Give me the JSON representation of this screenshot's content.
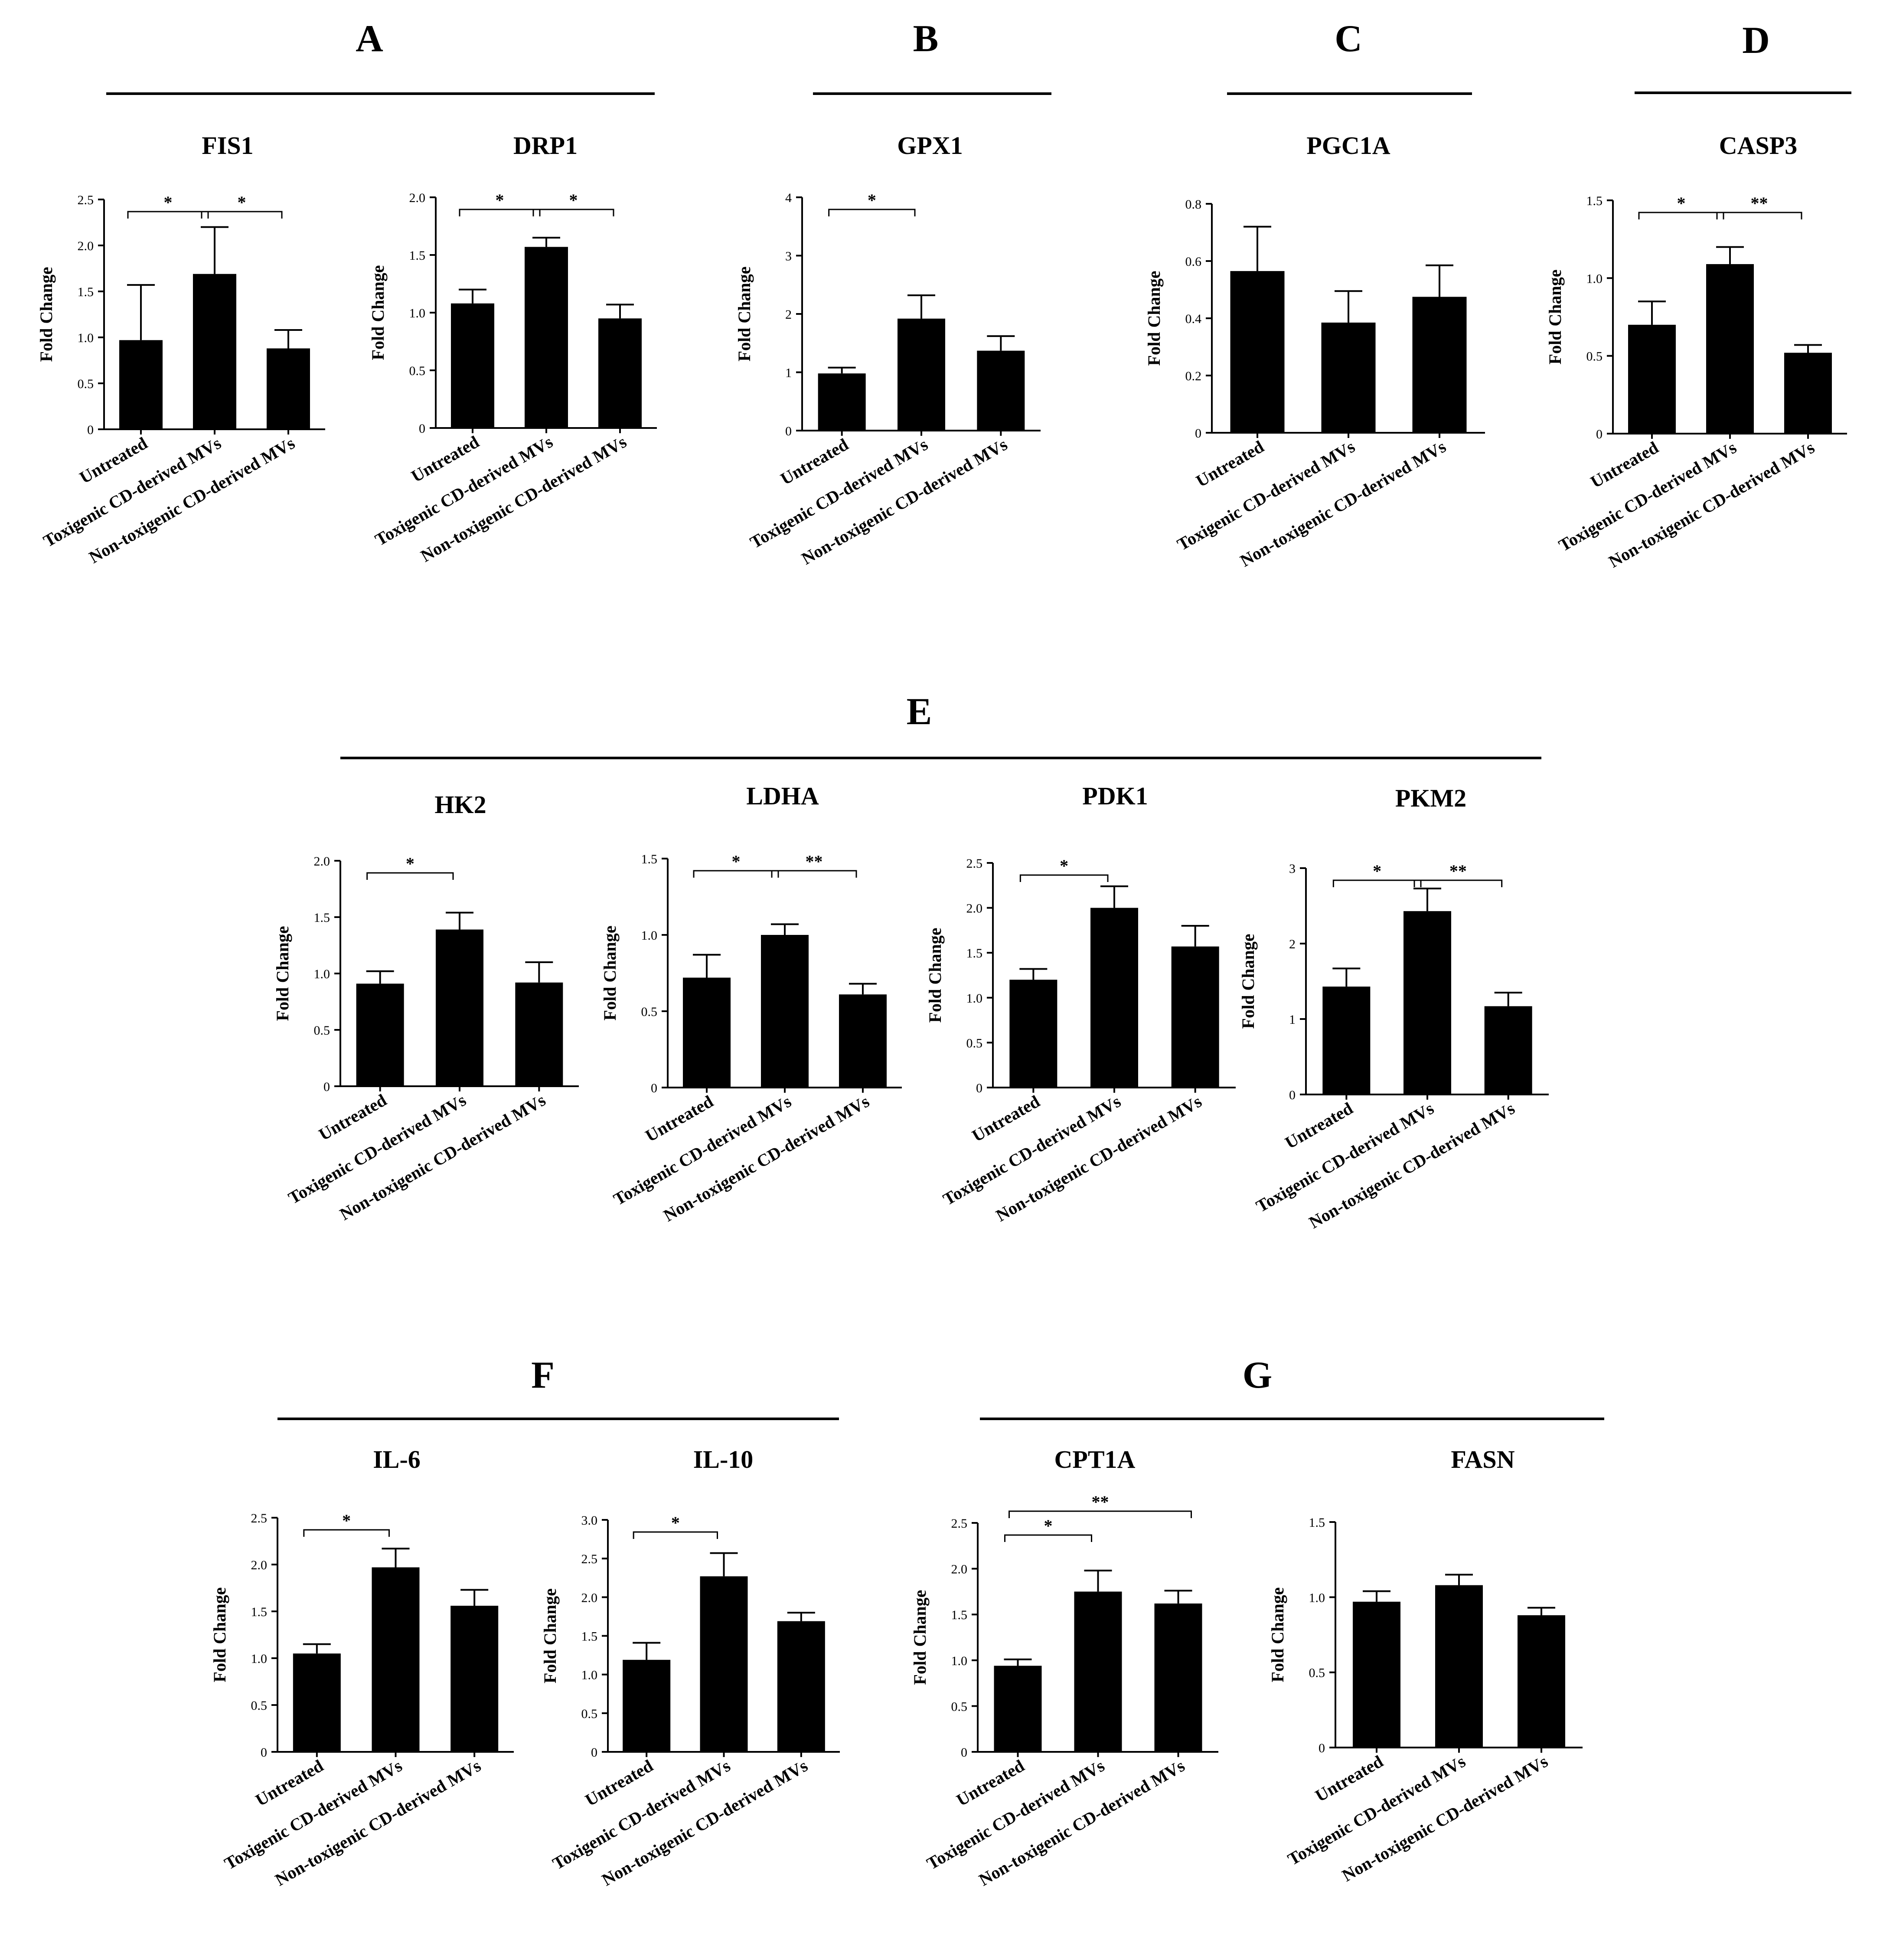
{
  "groups": [
    "Untreated",
    "Toxigenic CD-derived MVs",
    "Non-toxigenic CD-derived MVs"
  ],
  "panels": [
    {
      "letter": "A"
    },
    {
      "letter": "B"
    },
    {
      "letter": "C"
    },
    {
      "letter": "D"
    },
    {
      "letter": "E"
    },
    {
      "letter": "F"
    },
    {
      "letter": "G"
    }
  ],
  "chart_data": [
    {
      "type": "bar",
      "panel": "A",
      "title": "FIS1",
      "ylabel": "Fold Change",
      "categories": [
        "Untreated",
        "Toxigenic CD-derived MVs",
        "Non-toxigenic CD-derived MVs"
      ],
      "values": [
        0.97,
        1.69,
        0.88
      ],
      "errors": [
        0.6,
        0.51,
        0.2
      ],
      "ylim": [
        0,
        2.5
      ],
      "yticks": [
        "0",
        "0.5",
        "1.0",
        "1.5",
        "2.0",
        "2.5"
      ],
      "significance": [
        {
          "from": 0,
          "to": 1,
          "label": "*"
        },
        {
          "from": 1,
          "to": 2,
          "label": "*"
        }
      ]
    },
    {
      "type": "bar",
      "panel": "A",
      "title": "DRP1",
      "ylabel": "Fold Change",
      "categories": [
        "Untreated",
        "Toxigenic CD-derived MVs",
        "Non-toxigenic CD-derived MVs"
      ],
      "values": [
        1.08,
        1.57,
        0.95
      ],
      "errors": [
        0.12,
        0.08,
        0.12
      ],
      "ylim": [
        0,
        2.0
      ],
      "yticks": [
        "0",
        "0.5",
        "1.0",
        "1.5",
        "2.0"
      ],
      "significance": [
        {
          "from": 0,
          "to": 1,
          "label": "*"
        },
        {
          "from": 1,
          "to": 2,
          "label": "*"
        }
      ]
    },
    {
      "type": "bar",
      "panel": "B",
      "title": "GPX1",
      "ylabel": "Fold Change",
      "categories": [
        "Untreated",
        "Toxigenic CD-derived MVs",
        "Non-toxigenic CD-derived MVs"
      ],
      "values": [
        0.98,
        1.92,
        1.37
      ],
      "errors": [
        0.1,
        0.4,
        0.25
      ],
      "ylim": [
        0,
        4
      ],
      "yticks": [
        "0",
        "1",
        "2",
        "3",
        "4"
      ],
      "significance": [
        {
          "from": 0,
          "to": 1,
          "label": "*"
        }
      ]
    },
    {
      "type": "bar",
      "panel": "C",
      "title": "PGC1A",
      "ylabel": "Fold Change",
      "categories": [
        "Untreated",
        "Toxigenic CD-derived MVs",
        "Non-toxigenic CD-derived MVs"
      ],
      "values": [
        0.565,
        0.385,
        0.475
      ],
      "errors": [
        0.155,
        0.11,
        0.11
      ],
      "ylim": [
        0,
        0.8
      ],
      "yticks": [
        "0",
        "0.2",
        "0.4",
        "0.6",
        "0.8"
      ],
      "significance": []
    },
    {
      "type": "bar",
      "panel": "D",
      "title": "CASP3",
      "ylabel": "Fold Change",
      "categories": [
        "Untreated",
        "Toxigenic CD-derived MVs",
        "Non-toxigenic CD-derived MVs"
      ],
      "values": [
        0.7,
        1.09,
        0.52
      ],
      "errors": [
        0.15,
        0.11,
        0.05
      ],
      "ylim": [
        0,
        1.5
      ],
      "yticks": [
        "0",
        "0.5",
        "1.0",
        "1.5"
      ],
      "significance": [
        {
          "from": 0,
          "to": 1,
          "label": "*"
        },
        {
          "from": 1,
          "to": 2,
          "label": "**"
        }
      ]
    },
    {
      "type": "bar",
      "panel": "E",
      "title": "HK2",
      "ylabel": "Fold Change",
      "categories": [
        "Untreated",
        "Toxigenic CD-derived MVs",
        "Non-toxigenic CD-derived MVs"
      ],
      "values": [
        0.91,
        1.39,
        0.92
      ],
      "errors": [
        0.11,
        0.15,
        0.18
      ],
      "ylim": [
        0,
        2.0
      ],
      "yticks": [
        "0",
        "0.5",
        "1.0",
        "1.5",
        "2.0"
      ],
      "significance": [
        {
          "from": 0,
          "to": 1,
          "label": "*"
        }
      ]
    },
    {
      "type": "bar",
      "panel": "E",
      "title": "LDHA",
      "ylabel": "Fold Change",
      "categories": [
        "Untreated",
        "Toxigenic CD-derived MVs",
        "Non-toxigenic CD-derived MVs"
      ],
      "values": [
        0.72,
        1.0,
        0.61
      ],
      "errors": [
        0.15,
        0.07,
        0.07
      ],
      "ylim": [
        0,
        1.5
      ],
      "yticks": [
        "0",
        "0.5",
        "1.0",
        "1.5"
      ],
      "significance": [
        {
          "from": 0,
          "to": 1,
          "label": "*"
        },
        {
          "from": 1,
          "to": 2,
          "label": "**"
        }
      ]
    },
    {
      "type": "bar",
      "panel": "E",
      "title": "PDK1",
      "ylabel": "Fold Change",
      "categories": [
        "Untreated",
        "Toxigenic CD-derived MVs",
        "Non-toxigenic CD-derived MVs"
      ],
      "values": [
        1.2,
        2.0,
        1.57
      ],
      "errors": [
        0.12,
        0.24,
        0.23
      ],
      "ylim": [
        0,
        2.5
      ],
      "yticks": [
        "0",
        "0.5",
        "1.0",
        "1.5",
        "2.0",
        "2.5"
      ],
      "significance": [
        {
          "from": 0,
          "to": 1,
          "label": "*"
        }
      ]
    },
    {
      "type": "bar",
      "panel": "E",
      "title": "PKM2",
      "ylabel": "Fold Change",
      "categories": [
        "Untreated",
        "Toxigenic CD-derived MVs",
        "Non-toxigenic CD-derived MVs"
      ],
      "values": [
        1.43,
        2.43,
        1.17
      ],
      "errors": [
        0.24,
        0.3,
        0.18
      ],
      "ylim": [
        0,
        3
      ],
      "yticks": [
        "0",
        "1",
        "2",
        "3"
      ],
      "significance": [
        {
          "from": 0,
          "to": 1,
          "label": "*"
        },
        {
          "from": 1,
          "to": 2,
          "label": "**"
        }
      ]
    },
    {
      "type": "bar",
      "panel": "F",
      "title": "IL-6",
      "ylabel": "Fold Change",
      "categories": [
        "Untreated",
        "Toxigenic CD-derived MVs",
        "Non-toxigenic CD-derived MVs"
      ],
      "values": [
        1.05,
        1.97,
        1.56
      ],
      "errors": [
        0.1,
        0.2,
        0.17
      ],
      "ylim": [
        0,
        2.5
      ],
      "yticks": [
        "0",
        "0.5",
        "1.0",
        "1.5",
        "2.0",
        "2.5"
      ],
      "significance": [
        {
          "from": 0,
          "to": 1,
          "label": "*"
        }
      ]
    },
    {
      "type": "bar",
      "panel": "F",
      "title": "IL-10",
      "ylabel": "Fold Change",
      "categories": [
        "Untreated",
        "Toxigenic CD-derived MVs",
        "Non-toxigenic CD-derived MVs"
      ],
      "values": [
        1.19,
        2.27,
        1.69
      ],
      "errors": [
        0.22,
        0.3,
        0.11
      ],
      "ylim": [
        0,
        3.0
      ],
      "yticks": [
        "0",
        "0.5",
        "1.0",
        "1.5",
        "2.0",
        "2.5",
        "3.0"
      ],
      "significance": [
        {
          "from": 0,
          "to": 1,
          "label": "*"
        }
      ]
    },
    {
      "type": "bar",
      "panel": "G",
      "title": "CPT1A",
      "ylabel": "Fold Change",
      "categories": [
        "Untreated",
        "Toxigenic CD-derived MVs",
        "Non-toxigenic CD-derived MVs"
      ],
      "values": [
        0.94,
        1.75,
        1.62
      ],
      "errors": [
        0.07,
        0.23,
        0.14
      ],
      "ylim": [
        0,
        2.5
      ],
      "yticks": [
        "0",
        "0.5",
        "1.0",
        "1.5",
        "2.0",
        "2.5"
      ],
      "significance": [
        {
          "from": 0,
          "to": 1,
          "label": "*"
        },
        {
          "from": 0,
          "to": 2,
          "label": "**"
        }
      ]
    },
    {
      "type": "bar",
      "panel": "G",
      "title": "FASN",
      "ylabel": "Fold Change",
      "categories": [
        "Untreated",
        "Toxigenic CD-derived MVs",
        "Non-toxigenic CD-derived MVs"
      ],
      "values": [
        0.97,
        1.08,
        0.88
      ],
      "errors": [
        0.07,
        0.07,
        0.05
      ],
      "ylim": [
        0,
        1.5
      ],
      "yticks": [
        "0",
        "0.5",
        "1.0",
        "1.5"
      ],
      "significance": []
    }
  ]
}
